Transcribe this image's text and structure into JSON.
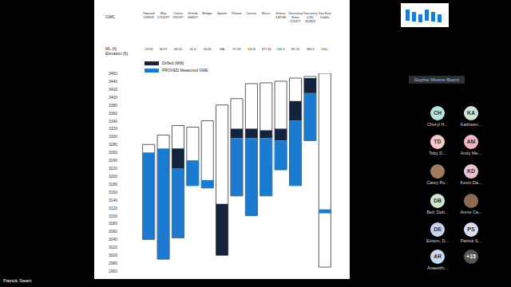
{
  "screen": {
    "presenter": "Patrick Swart",
    "spotlight": "Sophie Moene-Boom",
    "participants": [
      {
        "initials": "CH",
        "name": "Cheryl H..."
      },
      {
        "initials": "KA",
        "name": "Kathleen..."
      },
      {
        "initials": "TD",
        "name": "Toby D..."
      },
      {
        "initials": "AM",
        "name": "Andy Me..."
      },
      {
        "initials": null,
        "name": "Carey Po..."
      },
      {
        "initials": "KD",
        "name": "Kevin Da..."
      },
      {
        "initials": "DB",
        "name": "Bell, Deb..."
      },
      {
        "initials": null,
        "name": "Annie Ca..."
      },
      {
        "initials": "DE",
        "name": "Evison, D..."
      },
      {
        "initials": "PS",
        "name": "Patrick S..."
      },
      {
        "initials": "AR",
        "name": "Anaesthi..."
      }
    ],
    "more": "+15"
  },
  "chart_data": {
    "type": "floating_bar",
    "row_labels": [
      "GWC",
      "ML (ft)",
      "Elevation (ft)"
    ],
    "categories": [
      "Tomatek",
      "Mira",
      "Cortes",
      "Scheib",
      "Bridger",
      "Sparks",
      "Ponton",
      "Lonnie",
      "Bruce",
      "Ernest",
      "Discovery Rose",
      "Discovery (OS)",
      "Van East Dublin"
    ],
    "category_ids": [
      "228659",
      "1714197",
      "295767",
      "106627",
      null,
      null,
      null,
      null,
      null,
      "146746",
      "179477",
      "262824",
      null
    ],
    "ml_labels": [
      "23.94",
      "36.97",
      "36.54",
      "41.4",
      "34.35",
      "NA",
      "97.33",
      "115.8",
      "127.34",
      "130.6",
      "85.74",
      "180.9",
      "200+"
    ],
    "extent": [
      [
        3280,
        3040
      ],
      [
        3304,
        2990
      ],
      [
        3328,
        3044
      ],
      [
        3324,
        3176
      ],
      [
        3340,
        3170
      ],
      [
        3380,
        3000
      ],
      [
        3396,
        3150
      ],
      [
        3434,
        3100
      ],
      [
        3436,
        3150
      ],
      [
        3440,
        3216
      ],
      [
        3448,
        3176
      ],
      [
        3452,
        3290
      ],
      [
        3460,
        2970
      ]
    ],
    "series": [
      {
        "name": "Drilled (MM)",
        "color": "#14243f",
        "ranges": [
          null,
          null,
          [
            3270,
            3220
          ],
          null,
          null,
          [
            3130,
            3000
          ],
          [
            3320,
            3296
          ],
          [
            3320,
            3296
          ],
          [
            3316,
            3296
          ],
          [
            3320,
            3290
          ],
          [
            3390,
            3340
          ],
          [
            3448,
            3410
          ],
          null
        ]
      },
      {
        "name": "PROVED Measured GME",
        "color": "#1b7bd0",
        "ranges": [
          [
            3260,
            3040
          ],
          [
            3270,
            2990
          ],
          [
            3220,
            3044
          ],
          [
            3240,
            3176
          ],
          [
            3190,
            3170
          ],
          null,
          [
            3296,
            3150
          ],
          [
            3296,
            3100
          ],
          [
            3296,
            3150
          ],
          [
            3290,
            3216
          ],
          [
            3340,
            3176
          ],
          [
            3410,
            3290
          ],
          [
            3116,
            3106
          ]
        ]
      }
    ],
    "ylim": [
      2960,
      3460
    ],
    "yticks": [
      2960,
      2980,
      3000,
      3020,
      3040,
      3060,
      3080,
      3100,
      3120,
      3140,
      3160,
      3180,
      3200,
      3220,
      3240,
      3260,
      3280,
      3300,
      3320,
      3340,
      3360,
      3380,
      3400,
      3420,
      3440,
      3460
    ],
    "grid": false,
    "legend": "top-left",
    "tick_labels": "y"
  }
}
